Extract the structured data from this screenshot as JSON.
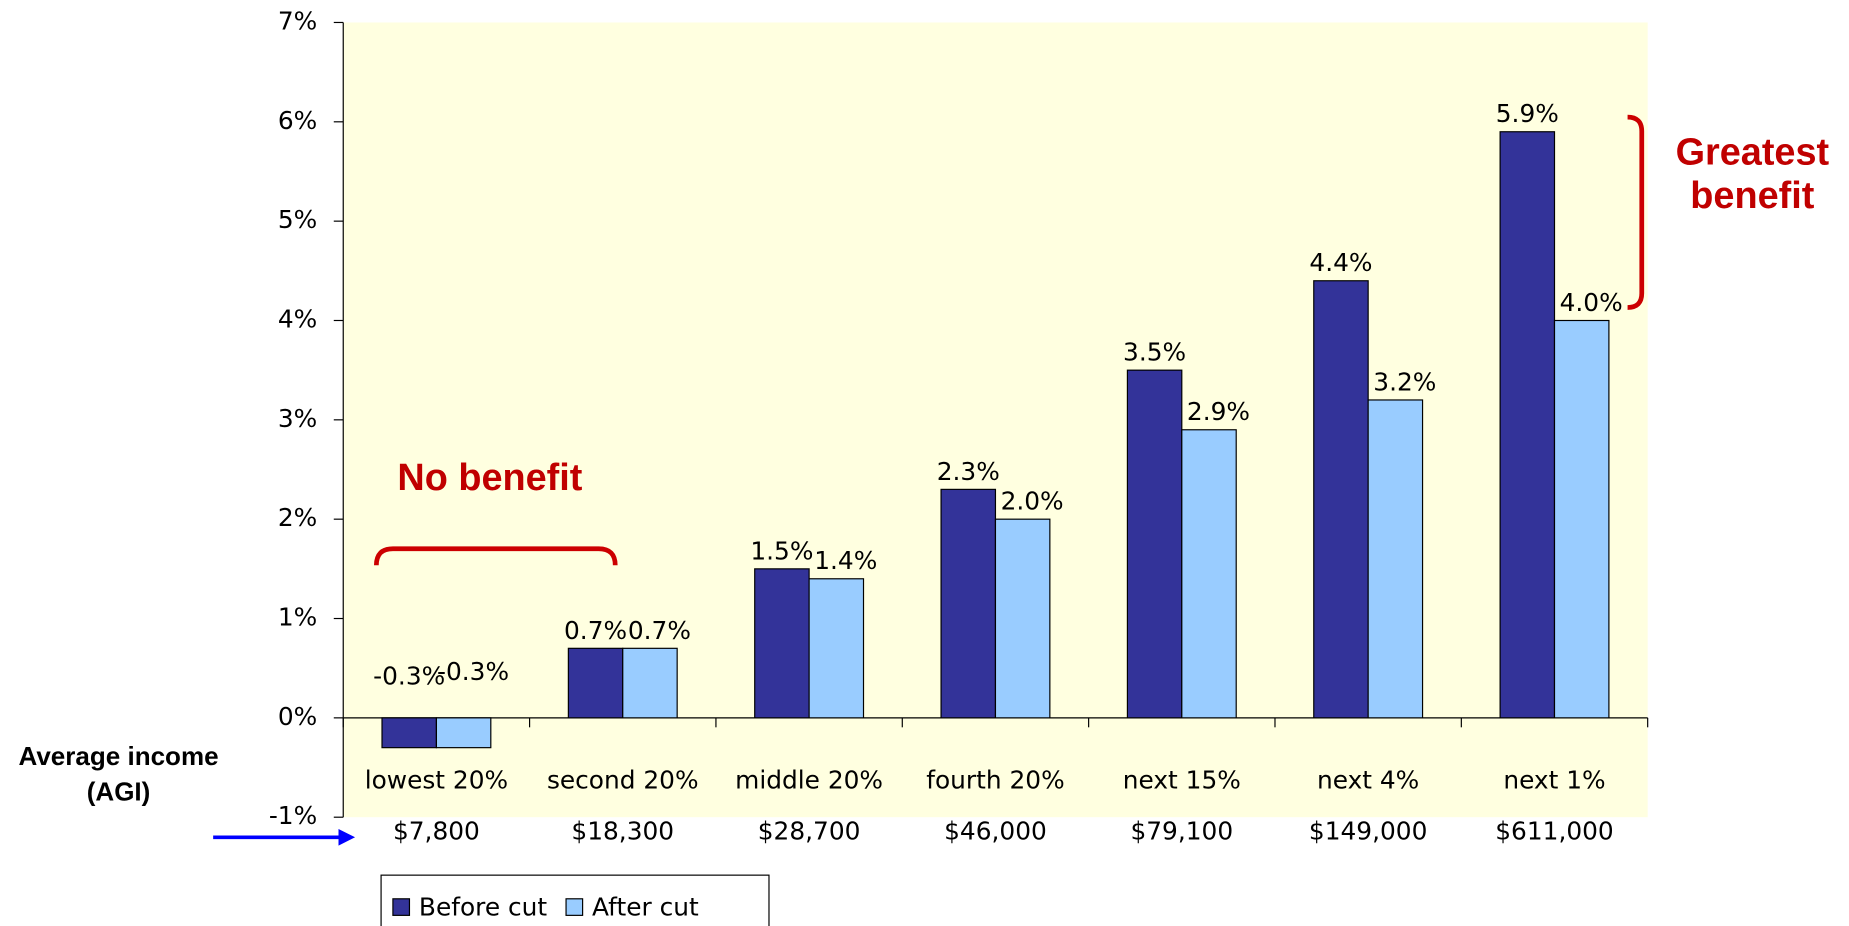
{
  "chart_data": {
    "type": "bar",
    "categories": [
      "lowest 20%",
      "second 20%",
      "middle 20%",
      "fourth 20%",
      "next 15%",
      "next 4%",
      "next 1%"
    ],
    "income_labels": [
      "$7,800",
      "$18,300",
      "$28,700",
      "$46,000",
      "$79,100",
      "$149,000",
      "$611,000"
    ],
    "series": [
      {
        "name": "Before cut",
        "color": "#333399",
        "values": [
          -0.3,
          0.7,
          1.5,
          2.3,
          3.5,
          4.4,
          5.9
        ],
        "value_labels": [
          "-0.3%",
          "0.7%",
          "1.5%",
          "2.3%",
          "3.5%",
          "4.4%",
          "5.9%"
        ]
      },
      {
        "name": "After cut",
        "color": "#99ccff",
        "values": [
          -0.3,
          0.7,
          1.4,
          2.0,
          2.9,
          3.2,
          4.0
        ],
        "value_labels": [
          "-0.3%",
          "0.7%",
          "1.4%",
          "2.0%",
          "2.9%",
          "3.2%",
          "4.0%"
        ]
      }
    ],
    "ylim": [
      -1,
      7
    ],
    "yticks": [
      {
        "value": -1,
        "label": "-1%"
      },
      {
        "value": 0,
        "label": "0%"
      },
      {
        "value": 1,
        "label": "1%"
      },
      {
        "value": 2,
        "label": "2%"
      },
      {
        "value": 3,
        "label": "3%"
      },
      {
        "value": 4,
        "label": "4%"
      },
      {
        "value": 5,
        "label": "5%"
      },
      {
        "value": 6,
        "label": "6%"
      },
      {
        "value": 7,
        "label": "7%"
      }
    ],
    "annotations": [
      "No benefit",
      "Greatest benefit",
      "Average income (AGI)"
    ],
    "plot_background": "#ffffe0"
  }
}
